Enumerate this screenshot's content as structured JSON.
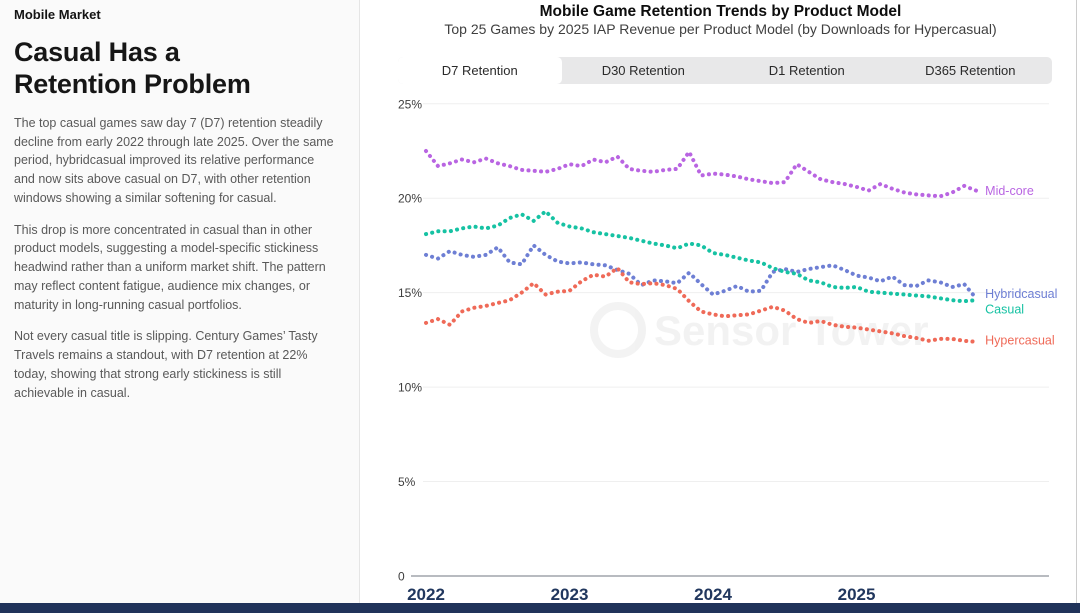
{
  "sidebar": {
    "eyebrow": "Mobile Market",
    "headline": "Casual Has a Retention Problem",
    "paragraphs": [
      "The top casual games saw day 7 (D7) retention steadily decline from early 2022 through late 2025. Over the same period, hybridcasual improved its relative performance and now sits above casual on D7, with other retention windows showing a similar softening for casual.",
      "This drop is more concentrated in casual than in other product models, suggesting a model-specific stickiness headwind rather than a uniform market shift. The pattern may reflect content fatigue, audience mix changes, or maturity in long-running casual portfolios.",
      "Not every casual title is slipping. Century Games’ Tasty Travels remains a standout, with D7 retention at 22% today, showing that strong early stickiness is still achievable in casual."
    ]
  },
  "chart": {
    "title": "Mobile Game Retention Trends by Product Model",
    "subtitle": "Top 25 Games by 2025 IAP Revenue per Product Model (by Downloads for Hypercasual)",
    "tabs": [
      "D7 Retention",
      "D30 Retention",
      "D1 Retention",
      "D365 Retention"
    ],
    "active_tab": "D7 Retention"
  },
  "chart_data": {
    "type": "line",
    "title": "Mobile Game Retention Trends by Product Model",
    "subtitle": "Top 25 Games by 2025 IAP Revenue per Product Model (by Downloads for Hypercasual)",
    "metric": "D7 Retention",
    "x_unit": "month",
    "x_start": "2022-01",
    "x_end": "2025-11",
    "x_tick_labels": [
      "2022",
      "2023",
      "2024",
      "2025"
    ],
    "y_ticks": [
      "25%",
      "20%",
      "15%",
      "10%",
      "5%",
      "0"
    ],
    "ylim": [
      0,
      25
    ],
    "grid": "horizontal",
    "legend_position": "line-end-labels",
    "watermark": "Sensor Tower",
    "series": [
      {
        "name": "Mid-core",
        "color": "#b965e2",
        "values": [
          22.5,
          21.7,
          21.85,
          22.05,
          21.9,
          22.1,
          21.85,
          21.7,
          21.5,
          21.45,
          21.4,
          21.55,
          21.8,
          21.7,
          22.05,
          21.9,
          22.2,
          21.55,
          21.45,
          21.4,
          21.5,
          21.55,
          22.45,
          21.2,
          21.3,
          21.25,
          21.15,
          21.0,
          20.9,
          20.8,
          20.85,
          21.8,
          21.4,
          21.0,
          20.85,
          20.75,
          20.6,
          20.4,
          20.75,
          20.5,
          20.3,
          20.2,
          20.15,
          20.1,
          20.3,
          20.65,
          20.4
        ]
      },
      {
        "name": "Hybridcasual",
        "color": "#6e7fd4",
        "values": [
          17.0,
          16.8,
          17.2,
          17.0,
          16.9,
          17.0,
          17.4,
          16.6,
          16.5,
          17.5,
          17.0,
          16.65,
          16.55,
          16.6,
          16.5,
          16.45,
          16.2,
          16.0,
          15.4,
          15.65,
          15.6,
          15.5,
          16.05,
          15.45,
          14.9,
          15.1,
          15.35,
          15.05,
          15.1,
          16.1,
          16.25,
          16.1,
          16.25,
          16.35,
          16.45,
          16.2,
          15.9,
          15.8,
          15.6,
          15.85,
          15.4,
          15.35,
          15.65,
          15.55,
          15.3,
          15.45,
          14.7
        ]
      },
      {
        "name": "Casual",
        "color": "#16c2a3",
        "values": [
          18.1,
          18.25,
          18.25,
          18.4,
          18.5,
          18.4,
          18.55,
          18.95,
          19.15,
          18.8,
          19.3,
          18.7,
          18.5,
          18.4,
          18.2,
          18.1,
          18.0,
          17.9,
          17.75,
          17.6,
          17.5,
          17.35,
          17.6,
          17.5,
          17.1,
          17.0,
          16.85,
          16.7,
          16.6,
          16.3,
          16.1,
          16.0,
          15.65,
          15.55,
          15.3,
          15.25,
          15.3,
          15.05,
          15.0,
          14.95,
          14.9,
          14.85,
          14.8,
          14.7,
          14.6,
          14.55,
          14.6
        ]
      },
      {
        "name": "Hypercasual",
        "color": "#ef6a58",
        "values": [
          13.4,
          13.6,
          13.3,
          14.0,
          14.2,
          14.3,
          14.45,
          14.6,
          15.0,
          15.5,
          14.9,
          15.05,
          15.1,
          15.6,
          15.95,
          15.85,
          16.3,
          15.55,
          15.45,
          15.5,
          15.4,
          15.2,
          14.55,
          14.0,
          13.85,
          13.75,
          13.8,
          13.85,
          14.05,
          14.25,
          14.05,
          13.6,
          13.4,
          13.5,
          13.3,
          13.2,
          13.15,
          13.05,
          12.95,
          12.85,
          12.7,
          12.6,
          12.45,
          12.55,
          12.55,
          12.45,
          12.4
        ]
      }
    ]
  }
}
